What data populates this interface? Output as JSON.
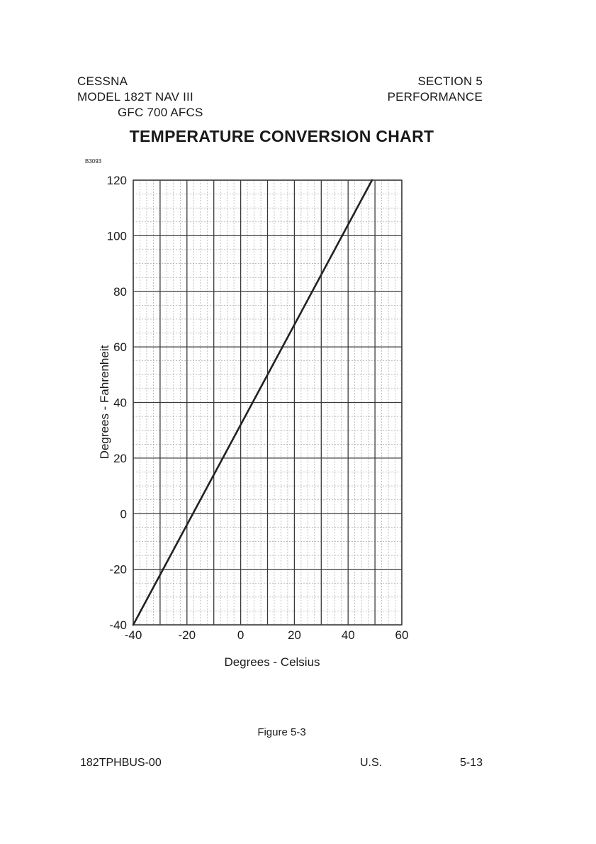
{
  "header": {
    "left_lines": [
      "CESSNA",
      "MODEL 182T NAV III",
      "GFC 700 AFCS"
    ],
    "right_lines": [
      "SECTION 5",
      "PERFORMANCE"
    ]
  },
  "figure_code": "B3093",
  "figure_caption": "Figure 5-3",
  "footer": {
    "doc_id": "182TPHBUS-00",
    "region": "U.S.",
    "page": "5-13"
  },
  "colors": {
    "ink": "#1a1a1a",
    "grid_major": "#3a3a3a",
    "grid_minor": "#9a9a9a",
    "line": "#222222"
  },
  "chart_data": {
    "type": "line",
    "title": "TEMPERATURE CONVERSION CHART",
    "xlabel": "Degrees - Celsius",
    "ylabel": "Degrees - Fahrenheit",
    "xlim": [
      -40,
      60
    ],
    "ylim": [
      -40,
      120
    ],
    "x_ticks": [
      -40,
      -20,
      0,
      20,
      40,
      60
    ],
    "y_ticks": [
      -40,
      -20,
      0,
      20,
      40,
      60,
      80,
      100,
      120
    ],
    "x_major_step": 10,
    "y_major_step": 20,
    "minor_divisions": 4,
    "grid": true,
    "series": [
      {
        "values": [
          [
            -40,
            -40
          ],
          [
            48.9,
            120
          ]
        ]
      }
    ]
  }
}
